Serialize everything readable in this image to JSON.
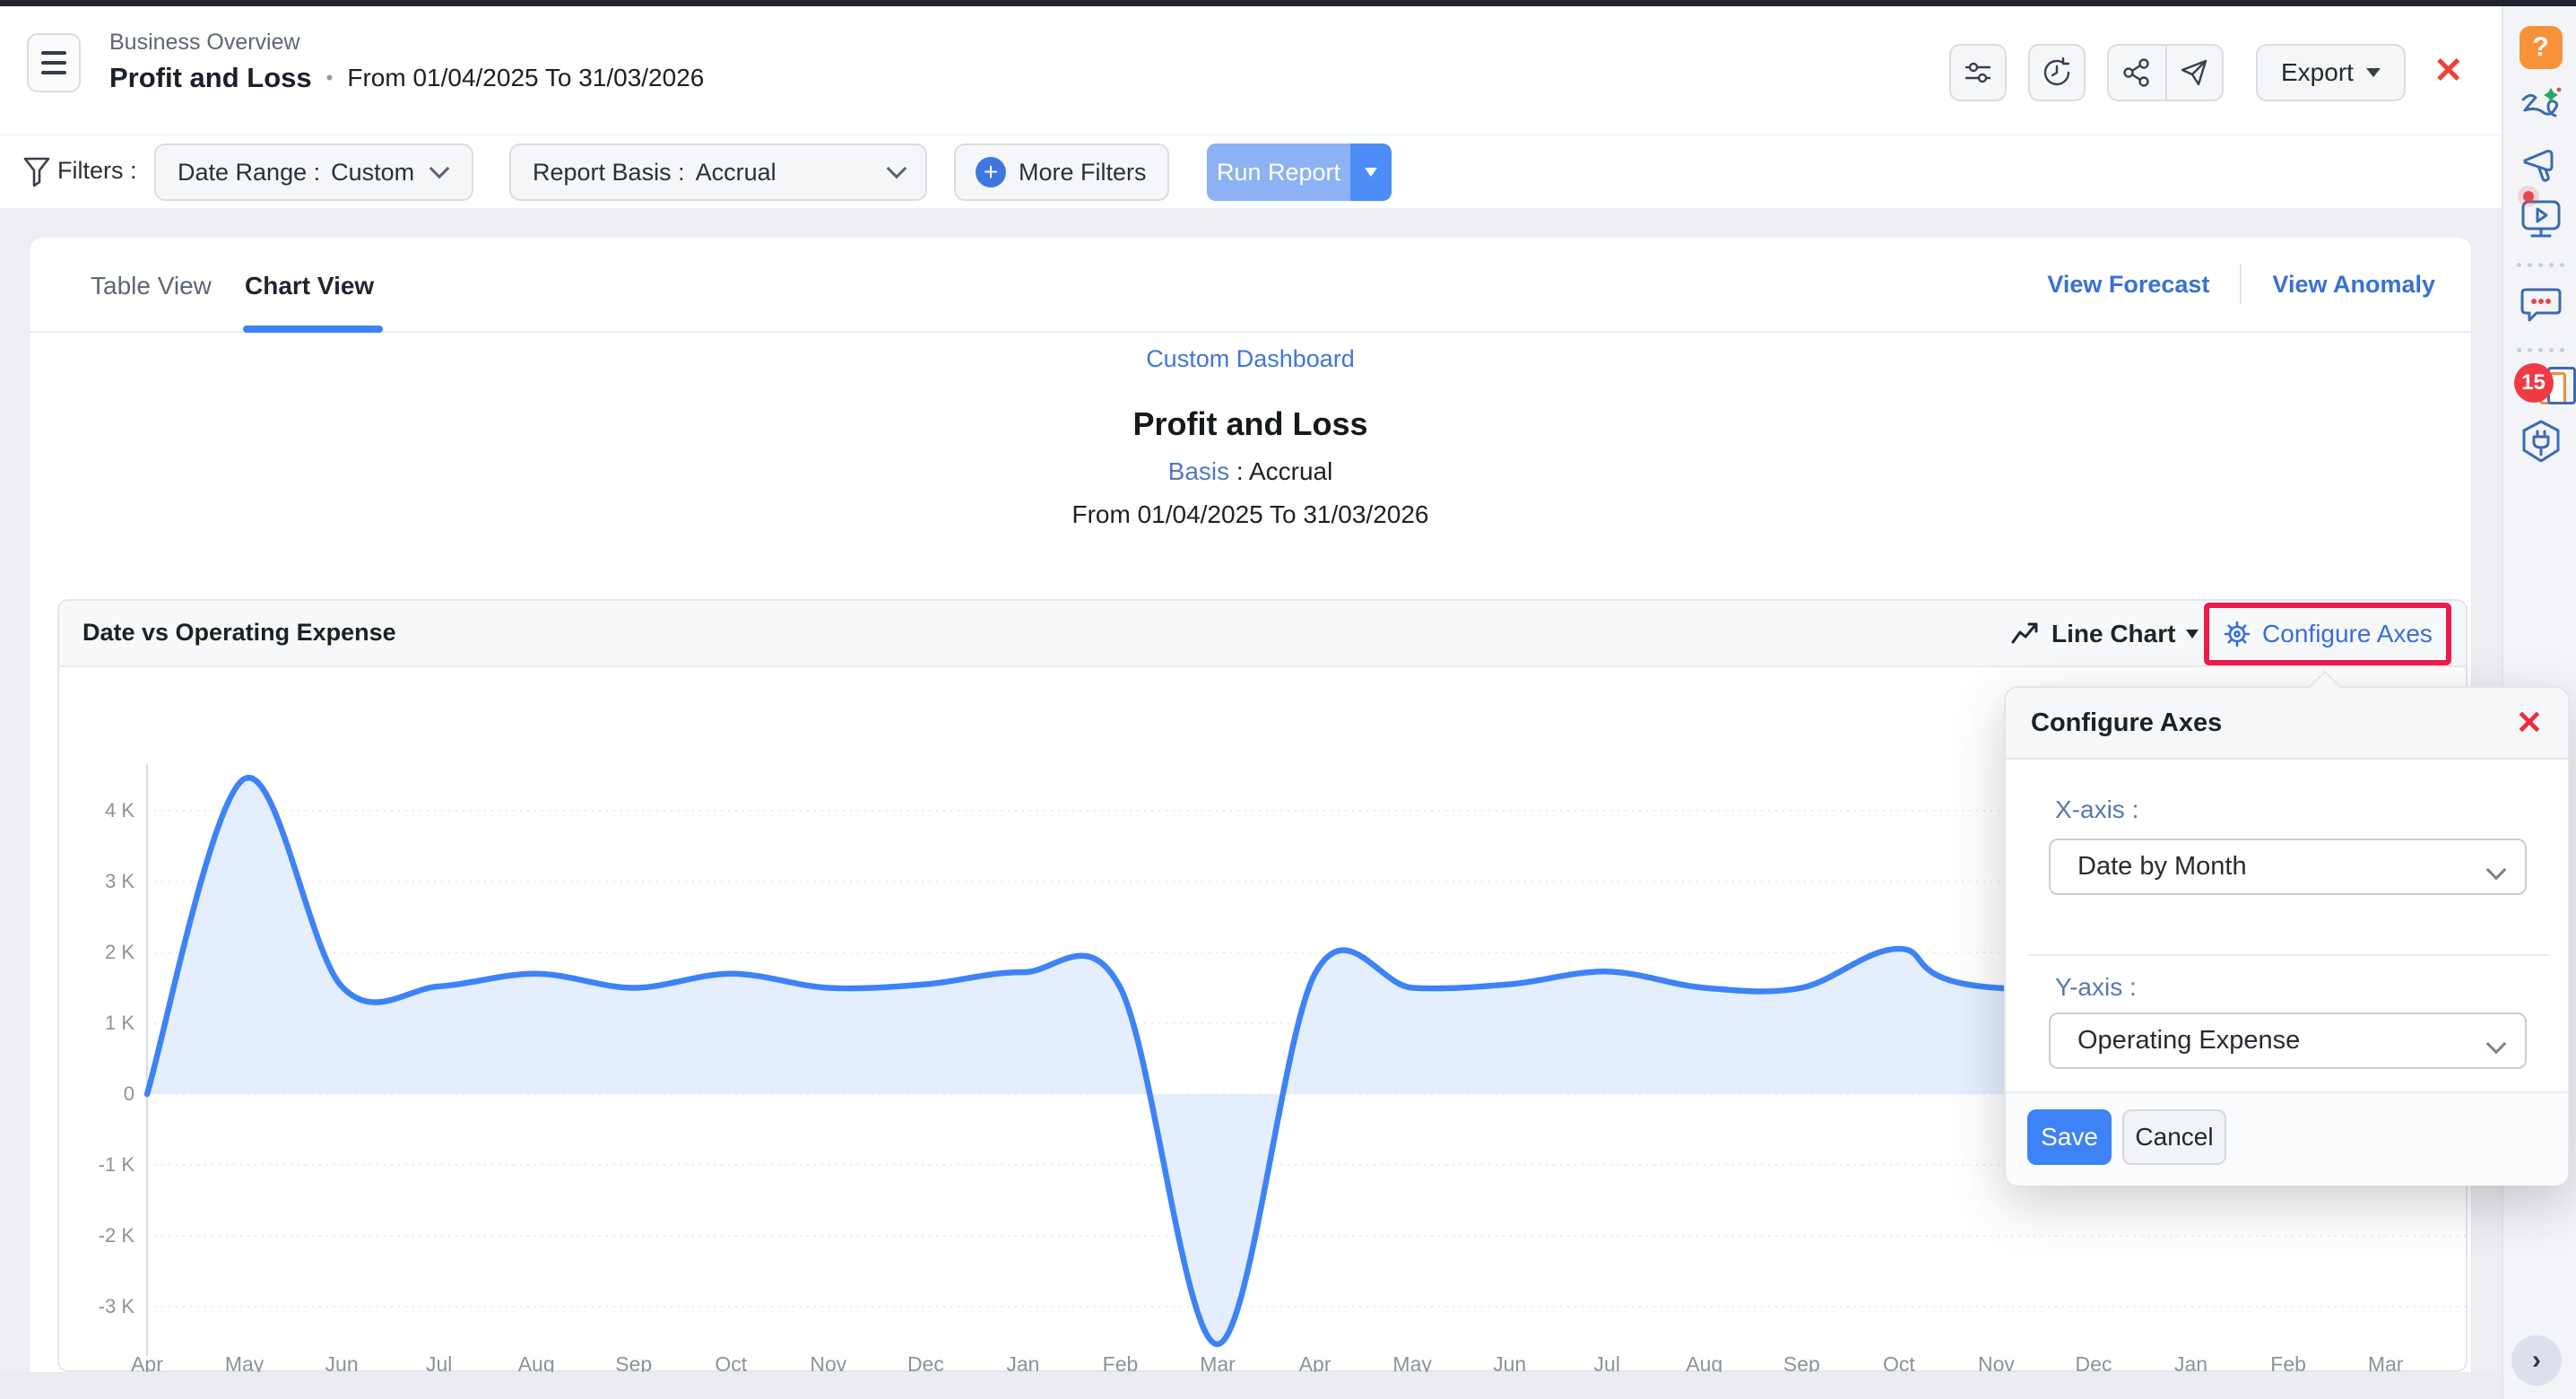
{
  "header": {
    "breadcrumb": "Business Overview",
    "title": "Profit and Loss",
    "separator": "•",
    "date_range": "From 01/04/2025 To 31/03/2026",
    "toolbar": {
      "export_label": "Export",
      "close_label": "✕"
    }
  },
  "filters": {
    "label": "Filters :",
    "date_range": {
      "label": "Date Range :",
      "value": "Custom"
    },
    "report_basis": {
      "label": "Report Basis :",
      "value": "Accrual"
    },
    "more_filters_label": "More Filters",
    "plus_glyph": "+",
    "run_report_label": "Run Report"
  },
  "tabs": {
    "table_view": "Table View",
    "chart_view": "Chart View",
    "view_forecast": "View Forecast",
    "view_anomaly": "View Anomaly"
  },
  "report": {
    "dashboard_link": "Custom Dashboard",
    "title": "Profit and Loss",
    "basis_label": "Basis",
    "basis_separator": " : ",
    "basis_value": "Accrual",
    "period": "From 01/04/2025 To 31/03/2026"
  },
  "chart_card": {
    "title": "Date vs Operating Expense",
    "chart_type_label": "Line Chart",
    "configure_label": "Configure Axes"
  },
  "popup": {
    "title": "Configure Axes",
    "close_label": "✕",
    "x_axis_label": "X-axis :",
    "x_axis_value": "Date by Month",
    "y_axis_label": "Y-axis :",
    "y_axis_value": "Operating Expense",
    "save_label": "Save",
    "cancel_label": "Cancel"
  },
  "sidebar": {
    "help_glyph": "?",
    "notification_count": "15"
  },
  "fab": {
    "next_glyph": "›"
  },
  "colors": {
    "accent_blue": "#3d82f7",
    "link_blue": "#3671d6",
    "label_blue": "#5878ac",
    "highlight_red": "#ef1a4b",
    "close_red": "#f2293c",
    "help_orange": "#f7923b",
    "badge_red": "#ee3b43",
    "sidebar_icon_blue": "#3c6ab0",
    "run_report_light": "#8cb1f4",
    "run_report_dark": "#4b8cf6"
  },
  "chart_data": {
    "type": "area",
    "title": "Date vs Operating Expense",
    "x": [
      "Apr",
      "May",
      "Jun",
      "Jul",
      "Aug",
      "Sep",
      "Oct",
      "Nov",
      "Dec",
      "Jan",
      "Feb",
      "Mar",
      "Apr",
      "May",
      "Jun",
      "Jul",
      "Aug",
      "Sep",
      "Oct",
      "Nov",
      "Dec",
      "Jan",
      "Feb",
      "Mar"
    ],
    "series": [
      {
        "name": "Operating Expense",
        "values_k": [
          0,
          4.45,
          1.52,
          1.52,
          1.7,
          1.5,
          1.7,
          1.5,
          1.55,
          1.72,
          1.5,
          -3.53,
          1.7,
          1.5,
          1.55,
          1.73,
          1.5,
          1.5,
          2.05,
          1.5,
          null,
          null,
          null,
          null
        ]
      }
    ],
    "occluded_by_popup_months": [
      "Dec",
      "Jan",
      "Feb",
      "Mar"
    ],
    "yticks": [
      {
        "v": 4,
        "label": "4 K"
      },
      {
        "v": 3,
        "label": "3 K"
      },
      {
        "v": 2,
        "label": "2 K"
      },
      {
        "v": 1,
        "label": "1 K"
      },
      {
        "v": 0,
        "label": "0"
      },
      {
        "v": -1,
        "label": "-1 K"
      },
      {
        "v": -2,
        "label": "-2 K"
      },
      {
        "v": -3,
        "label": "-3 K"
      }
    ],
    "ylim_k": [
      -3.7,
      6.0
    ],
    "grid": true,
    "legend": false,
    "line_color": "#3d82f7",
    "fill_color": "#e4eefc",
    "grid_color": "#e3e6ed",
    "axis_color": "#d8dbe3"
  }
}
